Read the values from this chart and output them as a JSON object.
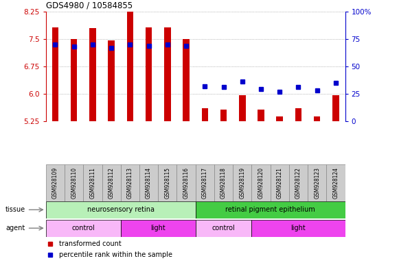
{
  "title": "GDS4980 / 10584855",
  "samples": [
    "GSM928109",
    "GSM928110",
    "GSM928111",
    "GSM928112",
    "GSM928113",
    "GSM928114",
    "GSM928115",
    "GSM928116",
    "GSM928117",
    "GSM928118",
    "GSM928119",
    "GSM928120",
    "GSM928121",
    "GSM928122",
    "GSM928123",
    "GSM928124"
  ],
  "transformed_counts": [
    7.82,
    7.5,
    7.8,
    7.47,
    8.35,
    7.82,
    7.82,
    7.5,
    5.6,
    5.57,
    5.95,
    5.57,
    5.38,
    5.6,
    5.38,
    5.95
  ],
  "percentile_ranks": [
    70,
    68,
    70,
    67,
    70,
    69,
    70,
    69,
    32,
    31,
    36,
    29,
    27,
    31,
    28,
    35
  ],
  "ylim": [
    5.25,
    8.25
  ],
  "yticks_left": [
    5.25,
    6.0,
    6.75,
    7.5,
    8.25
  ],
  "yticks_right": [
    0,
    25,
    50,
    75,
    100
  ],
  "bar_color": "#cc0000",
  "dot_color": "#0000cc",
  "baseline": 5.25,
  "tissue_groups": [
    {
      "label": "neurosensory retina",
      "start": 0,
      "end": 8,
      "color": "#b8f0b8"
    },
    {
      "label": "retinal pigment epithelium",
      "start": 8,
      "end": 16,
      "color": "#44cc44"
    }
  ],
  "agent_groups": [
    {
      "label": "control",
      "start": 0,
      "end": 4,
      "color": "#f8b8f8"
    },
    {
      "label": "light",
      "start": 4,
      "end": 8,
      "color": "#ee44ee"
    },
    {
      "label": "control",
      "start": 8,
      "end": 11,
      "color": "#f8b8f8"
    },
    {
      "label": "light",
      "start": 11,
      "end": 16,
      "color": "#ee44ee"
    }
  ],
  "legend_items": [
    {
      "label": "transformed count",
      "color": "#cc0000"
    },
    {
      "label": "percentile rank within the sample",
      "color": "#0000cc"
    }
  ],
  "left_axis_color": "#cc0000",
  "right_axis_color": "#0000cc",
  "background_color": "#ffffff",
  "plot_bg_color": "#ffffff",
  "xtick_bg_color": "#cccccc",
  "grid_color": "#888888"
}
